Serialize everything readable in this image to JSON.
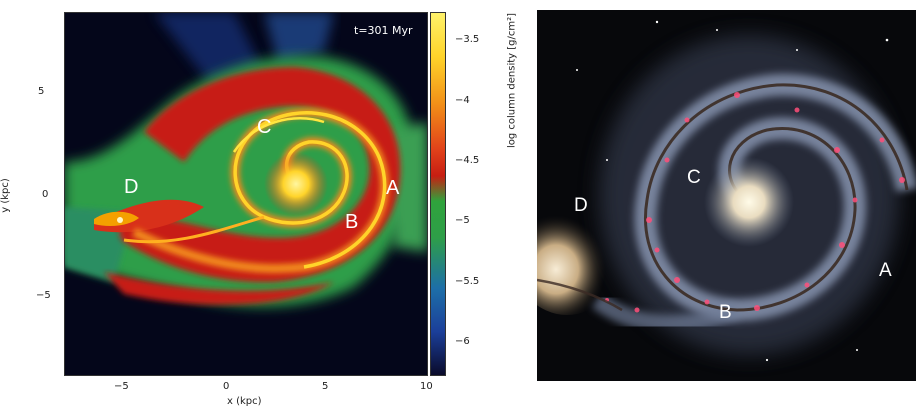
{
  "left_panel": {
    "time_label": "t=301  Myr",
    "x_axis_label": "x (kpc)",
    "y_axis_label": "y (kpc)",
    "x_ticks": [
      "−5",
      "0",
      "5",
      "10"
    ],
    "y_ticks": [
      "5",
      "0",
      "−5"
    ],
    "colorbar_label": "log column density [g/cm²]",
    "colorbar_ticks": [
      "−3.5",
      "−4",
      "−4.5",
      "−5",
      "−5.5",
      "−6"
    ],
    "region_labels": [
      "A",
      "B",
      "C",
      "D"
    ],
    "colors": {
      "background": "#04061a",
      "low": "#1d4fa8",
      "mid": "#2e9e48",
      "high_red": "#c71e12",
      "peak": "#ffe640"
    }
  },
  "right_panel": {
    "region_labels": [
      "A",
      "B",
      "C",
      "D"
    ],
    "colors": {
      "background": "#07080b",
      "arm": "#8c9ab6",
      "core": "#f4e8c8",
      "hii": "#ff4f7a"
    }
  }
}
